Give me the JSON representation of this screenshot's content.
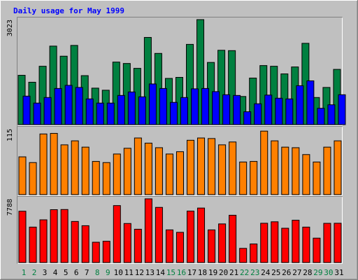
{
  "chart_data": {
    "type": "bar",
    "title": "Daily usage for May 1999",
    "categories": [
      "1",
      "2",
      "3",
      "4",
      "5",
      "6",
      "7",
      "8",
      "9",
      "10",
      "11",
      "12",
      "13",
      "14",
      "15",
      "16",
      "17",
      "18",
      "19",
      "20",
      "21",
      "22",
      "23",
      "24",
      "25",
      "26",
      "27",
      "28",
      "29",
      "30",
      "31"
    ],
    "weekend_days": [
      "1",
      "2",
      "8",
      "9",
      "15",
      "16",
      "22",
      "23",
      "29",
      "30"
    ],
    "panels": [
      {
        "max_label": "3023",
        "ylim": [
          0,
          3023
        ],
        "series": [
          {
            "color": "#008040",
            "values": [
              1420,
              1220,
              1680,
              2260,
              1970,
              2280,
              1410,
              1050,
              990,
              1800,
              1760,
              1620,
              2510,
              2050,
              1330,
              1360,
              2310,
              3023,
              1790,
              2140,
              2130,
              810,
              1340,
              1700,
              1680,
              1460,
              1660,
              2340,
              780,
              1070,
              1590
            ]
          },
          {
            "color": "#0000ff",
            "values": [
              820,
              620,
              780,
              1040,
              1130,
              1070,
              740,
              620,
              620,
              840,
              940,
              800,
              1170,
              1040,
              640,
              780,
              1030,
              1040,
              950,
              860,
              840,
              370,
              600,
              850,
              760,
              740,
              1120,
              1260,
              470,
              570,
              860
            ]
          }
        ]
      },
      {
        "max_label": "115",
        "ylim": [
          0,
          115
        ],
        "series": [
          {
            "color": "#ff8000",
            "values": [
              66,
              56,
              106,
              107,
              87,
              94,
              83,
              58,
              56,
              71,
              81,
              99,
              90,
              82,
              71,
              75,
              95,
              99,
              98,
              87,
              92,
              57,
              58,
              111,
              94,
              83,
              82,
              70,
              57,
              83,
              94
            ]
          }
        ]
      },
      {
        "max_label": "7788",
        "ylim": [
          0,
          7788
        ],
        "series": [
          {
            "color": "#ff0000",
            "values": [
              6270,
              4330,
              5220,
              6460,
              6480,
              5020,
              4500,
              2480,
              2600,
              6960,
              4770,
              4070,
              7788,
              6740,
              3990,
              3690,
              6290,
              6660,
              3990,
              4720,
              5780,
              1730,
              2270,
              4800,
              4980,
              4190,
              5170,
              4330,
              2980,
              4790,
              4800
            ]
          }
        ]
      }
    ],
    "colors": {
      "background": "#c0c0c0",
      "border": "#000000",
      "title": "#0000ff",
      "weekday_label": "#000000",
      "weekend_label": "#008040"
    }
  }
}
